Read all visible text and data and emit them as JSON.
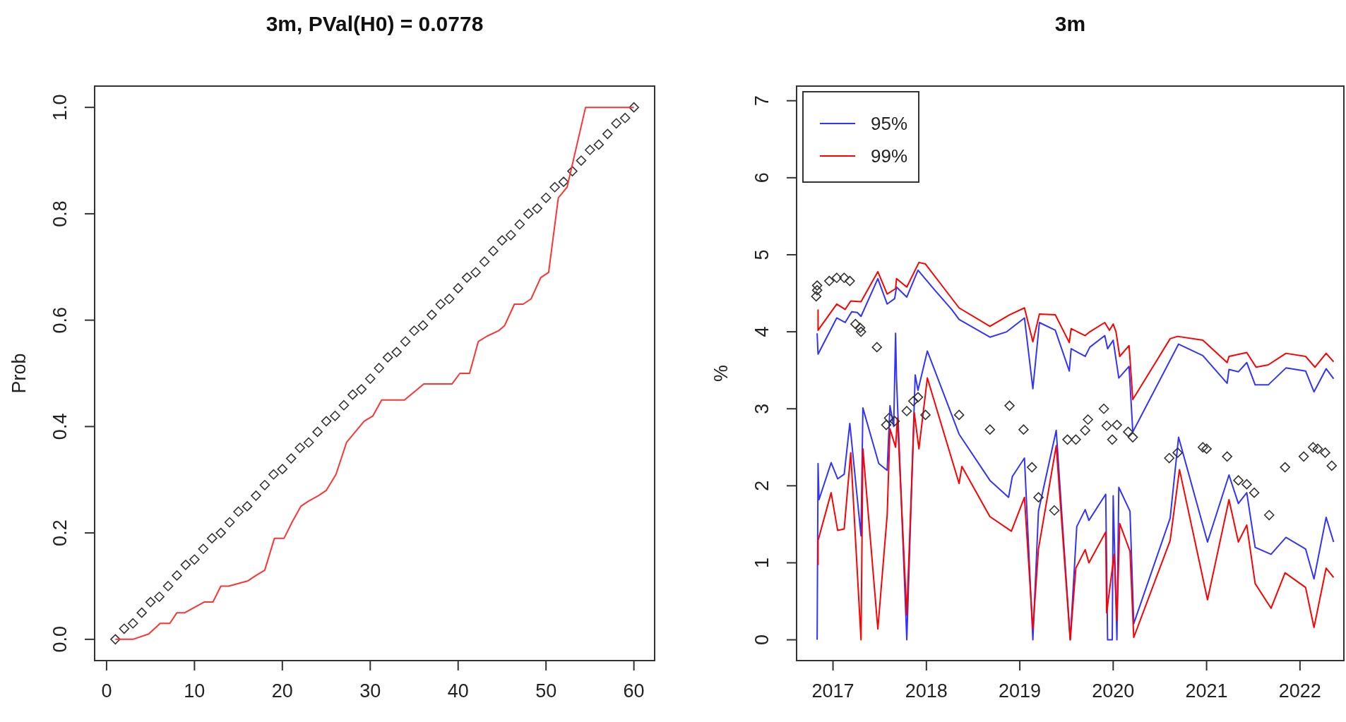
{
  "chart_data": [
    {
      "type": "line",
      "title": "3m, PVal(H0) = 0.0778",
      "ylabel": "Prob",
      "xlim": [
        -1.36,
        62.36
      ],
      "ylim": [
        -0.04,
        1.04
      ],
      "xticks": [
        0,
        10,
        20,
        30,
        40,
        50,
        60
      ],
      "yticks": [
        {
          "value": 0,
          "label": "0.0"
        },
        {
          "value": 0.2,
          "label": "0.2"
        },
        {
          "value": 0.4,
          "label": "0.4"
        },
        {
          "value": 0.6,
          "label": "0.6"
        },
        {
          "value": 0.8,
          "label": "0.8"
        },
        {
          "value": 1,
          "label": "1.0"
        }
      ],
      "legend": false,
      "series": [
        {
          "type": "scatter",
          "marker": "diamond",
          "color": "#333333",
          "x": [
            1,
            2,
            3,
            4,
            5,
            6,
            7,
            8,
            9,
            10,
            11,
            12,
            13,
            14,
            15,
            16,
            17,
            18,
            19,
            20,
            21,
            22,
            23,
            24,
            25,
            26,
            27,
            28,
            29,
            30,
            31,
            32,
            33,
            34,
            35,
            36,
            37,
            38,
            39,
            40,
            41,
            42,
            43,
            44,
            45,
            46,
            47,
            48,
            49,
            50,
            51,
            52,
            53,
            54,
            55,
            56,
            57,
            58,
            59,
            60
          ],
          "values": [
            0,
            0.02,
            0.03,
            0.05,
            0.07,
            0.08,
            0.1,
            0.12,
            0.14,
            0.15,
            0.17,
            0.19,
            0.2,
            0.22,
            0.24,
            0.25,
            0.27,
            0.29,
            0.31,
            0.32,
            0.34,
            0.36,
            0.37,
            0.39,
            0.41,
            0.42,
            0.44,
            0.46,
            0.47,
            0.49,
            0.51,
            0.53,
            0.54,
            0.56,
            0.58,
            0.59,
            0.61,
            0.63,
            0.64,
            0.66,
            0.68,
            0.69,
            0.71,
            0.73,
            0.75,
            0.76,
            0.78,
            0.8,
            0.81,
            0.83,
            0.85,
            0.86,
            0.88,
            0.9,
            0.92,
            0.93,
            0.95,
            0.97,
            0.98,
            1
          ]
        },
        {
          "type": "line",
          "color": "#ff3333",
          "x": [
            1,
            3,
            4.8,
            6.1,
            7.2,
            8,
            8.9,
            10,
            11.1,
            12.1,
            13,
            13.9,
            16.1,
            17,
            18,
            19.1,
            20.2,
            21.1,
            22.1,
            23,
            24.1,
            25,
            26.1,
            27.3,
            28.3,
            29.3,
            30.3,
            31.3,
            32.4,
            33.9,
            36.1,
            37.8,
            39.3,
            40.2,
            41.3,
            42.3,
            43.3,
            44.6,
            45.3,
            46.4,
            47.4,
            48.3,
            49.4,
            50.3,
            51.4,
            52.4,
            54.5,
            60
          ],
          "values": [
            0,
            0,
            0.01,
            0.03,
            0.03,
            0.05,
            0.05,
            0.06,
            0.07,
            0.07,
            0.1,
            0.1,
            0.11,
            0.12,
            0.13,
            0.19,
            0.19,
            0.22,
            0.25,
            0.26,
            0.27,
            0.28,
            0.31,
            0.37,
            0.39,
            0.41,
            0.42,
            0.45,
            0.45,
            0.45,
            0.48,
            0.48,
            0.48,
            0.5,
            0.5,
            0.56,
            0.57,
            0.58,
            0.59,
            0.63,
            0.63,
            0.64,
            0.68,
            0.69,
            0.83,
            0.85,
            1,
            1
          ]
        }
      ]
    },
    {
      "type": "line",
      "title": "3m",
      "ylabel": "%",
      "xlim": [
        2016.61,
        2022.47
      ],
      "ylim": [
        -0.27,
        7.19
      ],
      "xticks": [
        2017,
        2018,
        2019,
        2020,
        2021,
        2022
      ],
      "yticks": [
        0,
        1,
        2,
        3,
        4,
        5,
        6,
        7
      ],
      "legend": "top left",
      "series": [
        {
          "type": "line",
          "name": "95%",
          "color": "#3333ff",
          "x": [
            2016.83,
            2016.84,
            2017.04,
            2017.13,
            2017.2,
            2017.26,
            2017.3,
            2017.48,
            2017.58,
            2017.66,
            2017.68,
            2017.79,
            2017.91,
            2018.09,
            2018.27,
            2018.35,
            2018.68,
            2018.86,
            2019.05,
            2019.14,
            2019.21,
            2019.38,
            2019.53,
            2019.55,
            2019.7,
            2019.75,
            2019.91,
            2019.94,
            2020,
            2020.06,
            2020.17,
            2020.21,
            2020.7,
            2020.96,
            2021.22,
            2021.24,
            2021.34,
            2021.43,
            2021.52,
            2021.66,
            2021.85,
            2022.06,
            2022.15,
            2022.28,
            2022.36
          ],
          "values": [
            3.98,
            3.71,
            4.18,
            4.12,
            4.26,
            4.25,
            4.2,
            4.69,
            4.36,
            4.43,
            4.58,
            4.45,
            4.8,
            4.54,
            4.29,
            4.16,
            3.93,
            4,
            4.18,
            3.26,
            4.12,
            4.02,
            3.49,
            3.78,
            3.68,
            3.8,
            3.95,
            3.78,
            3.89,
            3.4,
            3.55,
            2.7,
            3.84,
            3.69,
            3.33,
            3.51,
            3.48,
            3.6,
            3.31,
            3.31,
            3.53,
            3.49,
            3.22,
            3.52,
            3.39
          ]
        },
        {
          "type": "line",
          "name": "99%",
          "color": "#ff0000",
          "x": [
            2016.84,
            2016.84,
            2017.04,
            2017.13,
            2017.19,
            2017.3,
            2017.48,
            2017.58,
            2017.67,
            2017.68,
            2017.79,
            2017.92,
            2017.99,
            2018.16,
            2018.35,
            2018.68,
            2018.89,
            2019.05,
            2019.14,
            2019.21,
            2019.38,
            2019.53,
            2019.55,
            2019.7,
            2019.75,
            2019.91,
            2019.96,
            2020,
            2020.03,
            2020.07,
            2020.17,
            2020.21,
            2020.61,
            2020.69,
            2020.96,
            2021.22,
            2021.24,
            2021.43,
            2021.53,
            2021.66,
            2021.85,
            2022.06,
            2022.16,
            2022.28,
            2022.36
          ],
          "values": [
            4.29,
            4.02,
            4.36,
            4.29,
            4.4,
            4.39,
            4.78,
            4.49,
            4.56,
            4.69,
            4.58,
            4.9,
            4.88,
            4.61,
            4.31,
            4.07,
            4.22,
            4.31,
            3.87,
            4.23,
            4.22,
            3.86,
            4.04,
            3.95,
            4,
            4.12,
            4.02,
            4.1,
            4,
            3.68,
            3.82,
            3.12,
            3.91,
            3.94,
            3.89,
            3.6,
            3.68,
            3.73,
            3.54,
            3.57,
            3.72,
            3.68,
            3.54,
            3.72,
            3.61
          ]
        },
        {
          "type": "line",
          "color": "#3333ff",
          "x": [
            2016.83,
            2016.84,
            2016.85,
            2016.98,
            2017.05,
            2017.12,
            2017.18,
            2017.3,
            2017.32,
            2017.49,
            2017.58,
            2017.61,
            2017.65,
            2017.67,
            2017.68,
            2017.79,
            2017.88,
            2017.91,
            2018.01,
            2018.35,
            2018.68,
            2018.88,
            2018.92,
            2019.05,
            2019.14,
            2019.2,
            2019.39,
            2019.54,
            2019.61,
            2019.7,
            2019.74,
            2019.92,
            2019.94,
            2019.99,
            2020,
            2020.04,
            2020.06,
            2020.18,
            2020.22,
            2020.61,
            2020.7,
            2021.01,
            2021.24,
            2021.34,
            2021.43,
            2021.52,
            2021.69,
            2021.85,
            2022.06,
            2022.15,
            2022.28,
            2022.36
          ],
          "values": [
            0,
            2.29,
            1.82,
            2.3,
            2.09,
            2.15,
            2.81,
            1.35,
            3.01,
            2.29,
            2.2,
            3.04,
            2.77,
            3.98,
            3.39,
            0,
            3.44,
            3.24,
            3.75,
            2.67,
            2.07,
            1.85,
            2.12,
            2.36,
            0,
            1.67,
            2.72,
            0,
            1.47,
            1.69,
            1.55,
            1.89,
            0,
            0,
            1.87,
            0,
            1.98,
            1.67,
            0.21,
            1.58,
            2.63,
            1.27,
            2.14,
            1.77,
            1.91,
            1.2,
            1.11,
            1.33,
            1.18,
            0.79,
            1.59,
            1.27
          ]
        },
        {
          "type": "line",
          "color": "#ff0000",
          "x": [
            2016.84,
            2016.84,
            2016.98,
            2017.05,
            2017.12,
            2017.19,
            2017.3,
            2017.32,
            2017.48,
            2017.58,
            2017.61,
            2017.67,
            2017.69,
            2017.79,
            2017.87,
            2017.92,
            2018.01,
            2018.35,
            2018.38,
            2018.68,
            2018.91,
            2019.05,
            2019.14,
            2019.2,
            2019.39,
            2019.54,
            2019.6,
            2019.7,
            2019.74,
            2019.92,
            2019.93,
            2020.01,
            2020.04,
            2020.07,
            2020.18,
            2020.22,
            2020.61,
            2020.71,
            2021.01,
            2021.24,
            2021.34,
            2021.43,
            2021.52,
            2021.69,
            2021.84,
            2022.06,
            2022.15,
            2022.28,
            2022.36
          ],
          "values": [
            0.97,
            1.29,
            1.91,
            1.42,
            1.44,
            2.43,
            0,
            2.48,
            0.14,
            1.62,
            2.74,
            2.5,
            2.88,
            0.32,
            2.95,
            2.48,
            3.4,
            2.03,
            2.25,
            1.6,
            1.41,
            1.85,
            0.14,
            1.18,
            2.52,
            0,
            0.93,
            1.17,
            1,
            1.4,
            0.35,
            1.11,
            0.25,
            1.51,
            1.15,
            0.03,
            1.29,
            2.21,
            0.52,
            1.82,
            1.27,
            1.49,
            0.73,
            0.41,
            0.87,
            0.68,
            0.16,
            0.93,
            0.81
          ]
        },
        {
          "type": "scatter",
          "marker": "diamond",
          "color": "#333333",
          "x": [
            2016.82,
            2016.83,
            2016.83,
            2016.96,
            2017.04,
            2017.12,
            2017.18,
            2017.24,
            2017.29,
            2017.3,
            2017.47,
            2017.57,
            2017.6,
            2017.66,
            2017.79,
            2017.86,
            2017.91,
            2017.99,
            2018.35,
            2018.68,
            2018.89,
            2019.04,
            2019.13,
            2019.2,
            2019.37,
            2019.51,
            2019.6,
            2019.7,
            2019.73,
            2019.9,
            2019.93,
            2019.99,
            2020.04,
            2020.16,
            2020.21,
            2020.6,
            2020.69,
            2020.96,
            2021,
            2021.22,
            2021.34,
            2021.43,
            2021.51,
            2021.67,
            2021.84,
            2022.04,
            2022.14,
            2022.19,
            2022.27,
            2022.34
          ],
          "values": [
            4.46,
            4.54,
            4.6,
            4.66,
            4.7,
            4.7,
            4.66,
            4.1,
            4.05,
            4,
            3.8,
            2.79,
            2.88,
            2.84,
            2.97,
            3.1,
            3.15,
            2.92,
            2.92,
            2.73,
            3.04,
            2.73,
            2.24,
            1.85,
            1.68,
            2.6,
            2.6,
            2.72,
            2.86,
            3,
            2.78,
            2.6,
            2.79,
            2.7,
            2.63,
            2.36,
            2.43,
            2.5,
            2.48,
            2.38,
            2.07,
            2.02,
            1.91,
            1.62,
            2.24,
            2.38,
            2.5,
            2.48,
            2.43,
            2.26
          ]
        }
      ]
    }
  ]
}
